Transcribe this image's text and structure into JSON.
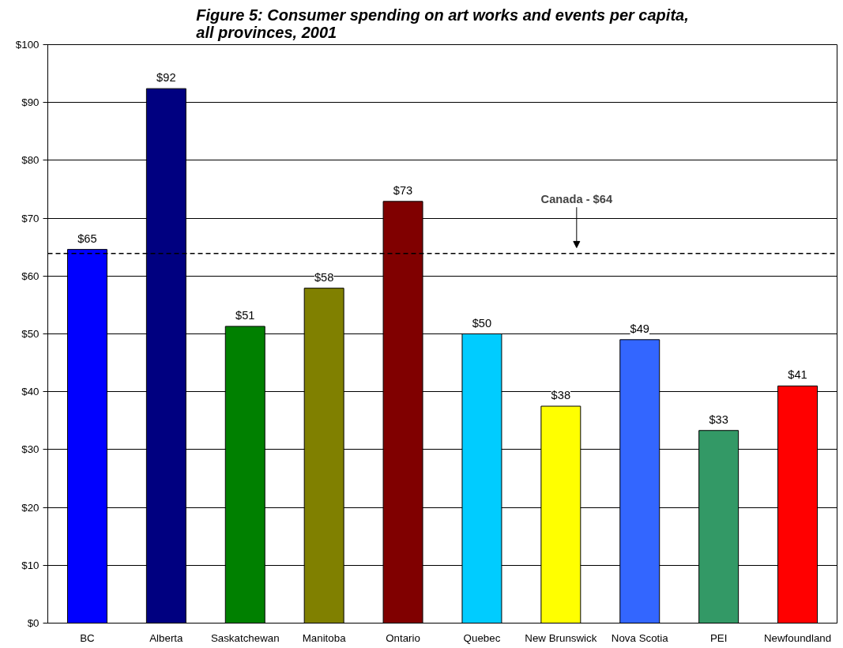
{
  "chart_data": {
    "type": "bar",
    "title": "Figure 5: Consumer spending on art works and events per capita,\nall provinces, 2001",
    "categories": [
      "BC",
      "Alberta",
      "Saskatchewan",
      "Manitoba",
      "Ontario",
      "Quebec",
      "New Brunswick",
      "Nova Scotia",
      "PEI",
      "Newfoundland"
    ],
    "values": [
      64.6,
      92.4,
      51.3,
      57.9,
      72.9,
      50.0,
      37.5,
      49.0,
      33.3,
      41.0
    ],
    "colors": [
      "#0000ff",
      "#000080",
      "#008000",
      "#808000",
      "#800000",
      "#00ccff",
      "#ffff00",
      "#3366ff",
      "#339966",
      "#ff0000"
    ],
    "value_labels": [
      "$65",
      "$92",
      "$51",
      "$58",
      "$73",
      "$50",
      "$38",
      "$49",
      "$33",
      "$41"
    ],
    "ylim": [
      0,
      100
    ],
    "yticks": [
      {
        "value": 0,
        "label": "$0"
      },
      {
        "value": 10,
        "label": "$10"
      },
      {
        "value": 20,
        "label": "$20"
      },
      {
        "value": 30,
        "label": "$30"
      },
      {
        "value": 40,
        "label": "$40"
      },
      {
        "value": 50,
        "label": "$50"
      },
      {
        "value": 60,
        "label": "$60"
      },
      {
        "value": 70,
        "label": "$70"
      },
      {
        "value": 80,
        "label": "$80"
      },
      {
        "value": 90,
        "label": "$90"
      },
      {
        "value": 100,
        "label": "$100"
      }
    ],
    "ref_lines": [
      {
        "axis": "y",
        "value": 63.9,
        "label": "Canada - $64",
        "color": "#000000",
        "line_style": "dashed"
      }
    ],
    "grid": "y"
  }
}
